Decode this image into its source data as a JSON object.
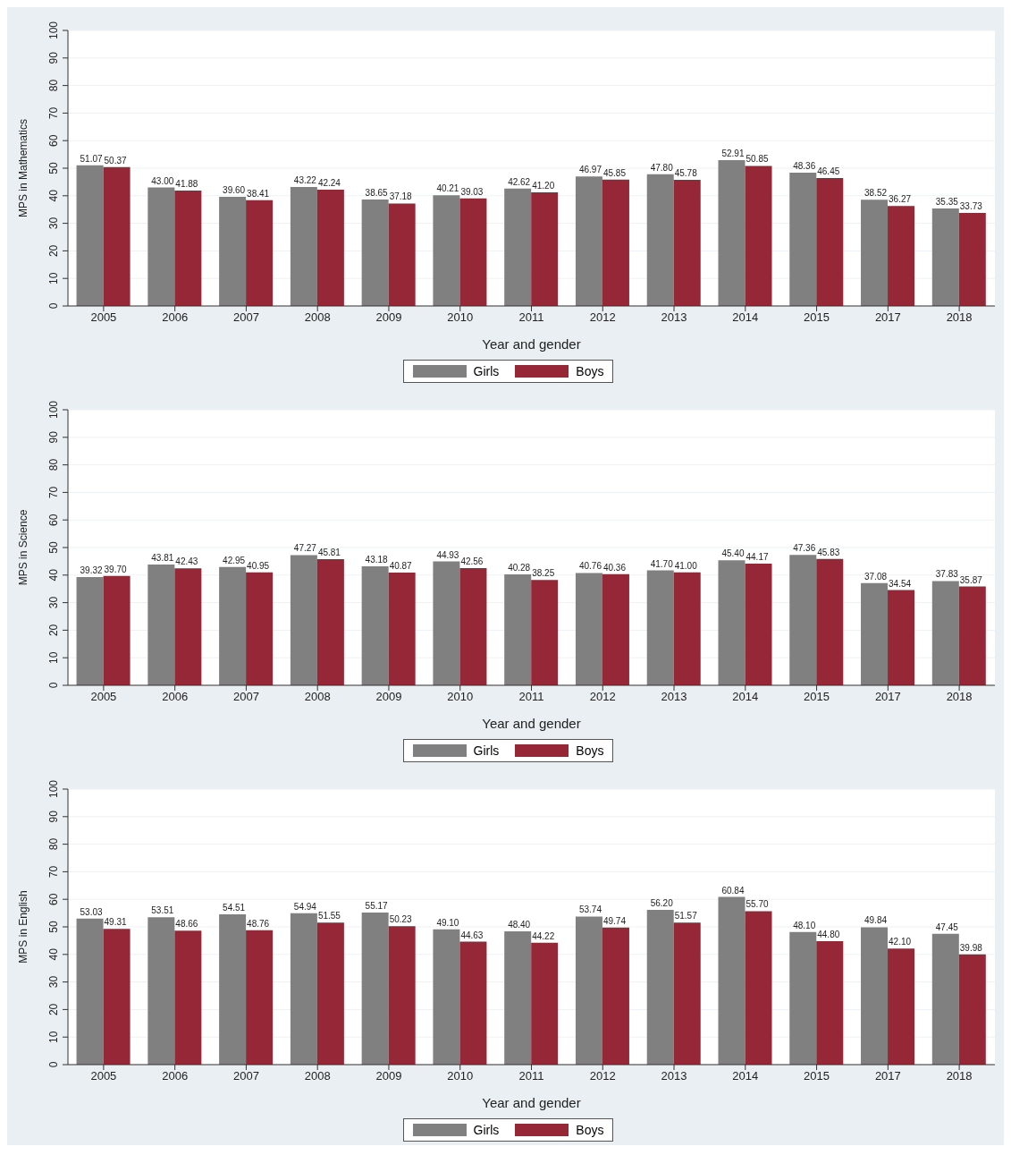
{
  "chart_data": [
    {
      "type": "bar",
      "ylabel": "MPS in Mathematics",
      "xlabel": "Year and gender",
      "categories": [
        "2005",
        "2006",
        "2007",
        "2008",
        "2009",
        "2010",
        "2011",
        "2012",
        "2013",
        "2014",
        "2015",
        "2017",
        "2018"
      ],
      "ylim": [
        0,
        100
      ],
      "yticks": [
        0,
        10,
        20,
        30,
        40,
        50,
        60,
        70,
        80,
        90,
        100
      ],
      "grid": "y",
      "legend": "bottom",
      "series": [
        {
          "name": "Girls",
          "color": "#808080",
          "values": [
            51.07,
            43.0,
            39.6,
            43.22,
            38.65,
            40.21,
            42.62,
            46.97,
            47.8,
            52.91,
            48.36,
            38.52,
            35.35
          ],
          "value_labels": [
            "51.07",
            "43.00",
            "39.60",
            "43.22",
            "38.65",
            "40.21",
            "42.62",
            "46.97",
            "47.80",
            "52.91",
            "48.36",
            "38.52",
            "35.35"
          ]
        },
        {
          "name": "Boys",
          "color": "#952737",
          "values": [
            50.37,
            41.88,
            38.41,
            42.24,
            37.18,
            39.03,
            41.2,
            45.85,
            45.78,
            50.85,
            46.45,
            36.27,
            33.73
          ],
          "value_labels": [
            "50.37",
            "41.88",
            "38.41",
            "42.24",
            "37.18",
            "39.03",
            "41.20",
            "45.85",
            "45.78",
            "50.85",
            "46.45",
            "36.27",
            "33.73"
          ]
        }
      ]
    },
    {
      "type": "bar",
      "ylabel": "MPS in Science",
      "xlabel": "Year and gender",
      "categories": [
        "2005",
        "2006",
        "2007",
        "2008",
        "2009",
        "2010",
        "2011",
        "2012",
        "2013",
        "2014",
        "2015",
        "2017",
        "2018"
      ],
      "ylim": [
        0,
        100
      ],
      "yticks": [
        0,
        10,
        20,
        30,
        40,
        50,
        60,
        70,
        80,
        90,
        100
      ],
      "grid": "y",
      "legend": "bottom",
      "series": [
        {
          "name": "Girls",
          "color": "#808080",
          "values": [
            39.32,
            43.81,
            42.95,
            47.27,
            43.18,
            44.93,
            40.28,
            40.76,
            41.7,
            45.4,
            47.36,
            37.08,
            37.83
          ],
          "value_labels": [
            "39.32",
            "43.81",
            "42.95",
            "47.27",
            "43.18",
            "44.93",
            "40.28",
            "40.76",
            "41.70",
            "45.40",
            "47.36",
            "37.08",
            "37.83"
          ]
        },
        {
          "name": "Boys",
          "color": "#952737",
          "values": [
            39.7,
            42.43,
            40.95,
            45.81,
            40.87,
            42.56,
            38.25,
            40.36,
            41.0,
            44.17,
            45.83,
            34.54,
            35.87
          ],
          "value_labels": [
            "39.70",
            "42.43",
            "40.95",
            "45.81",
            "40.87",
            "42.56",
            "38.25",
            "40.36",
            "41.00",
            "44.17",
            "45.83",
            "34.54",
            "35.87"
          ]
        }
      ]
    },
    {
      "type": "bar",
      "ylabel": "MPS in English",
      "xlabel": "Year and gender",
      "categories": [
        "2005",
        "2006",
        "2007",
        "2008",
        "2009",
        "2010",
        "2011",
        "2012",
        "2013",
        "2014",
        "2015",
        "2017",
        "2018"
      ],
      "ylim": [
        0,
        100
      ],
      "yticks": [
        0,
        10,
        20,
        30,
        40,
        50,
        60,
        70,
        80,
        90,
        100
      ],
      "grid": "y",
      "legend": "bottom",
      "series": [
        {
          "name": "Girls",
          "color": "#808080",
          "values": [
            53.03,
            53.51,
            54.51,
            54.94,
            55.17,
            49.1,
            48.4,
            53.74,
            56.2,
            60.84,
            48.1,
            49.84,
            47.45
          ],
          "value_labels": [
            "53.03",
            "53.51",
            "54.51",
            "54.94",
            "55.17",
            "49.10",
            "48.40",
            "53.74",
            "56.20",
            "60.84",
            "48.10",
            "49.84",
            "47.45"
          ]
        },
        {
          "name": "Boys",
          "color": "#952737",
          "values": [
            49.31,
            48.66,
            48.76,
            51.55,
            50.23,
            44.63,
            44.22,
            49.74,
            51.57,
            55.7,
            44.8,
            42.1,
            39.98
          ],
          "value_labels": [
            "49.31",
            "48.66",
            "48.76",
            "51.55",
            "50.23",
            "44.63",
            "44.22",
            "49.74",
            "51.57",
            "55.70",
            "44.80",
            "42.10",
            "39.98"
          ]
        }
      ]
    }
  ]
}
